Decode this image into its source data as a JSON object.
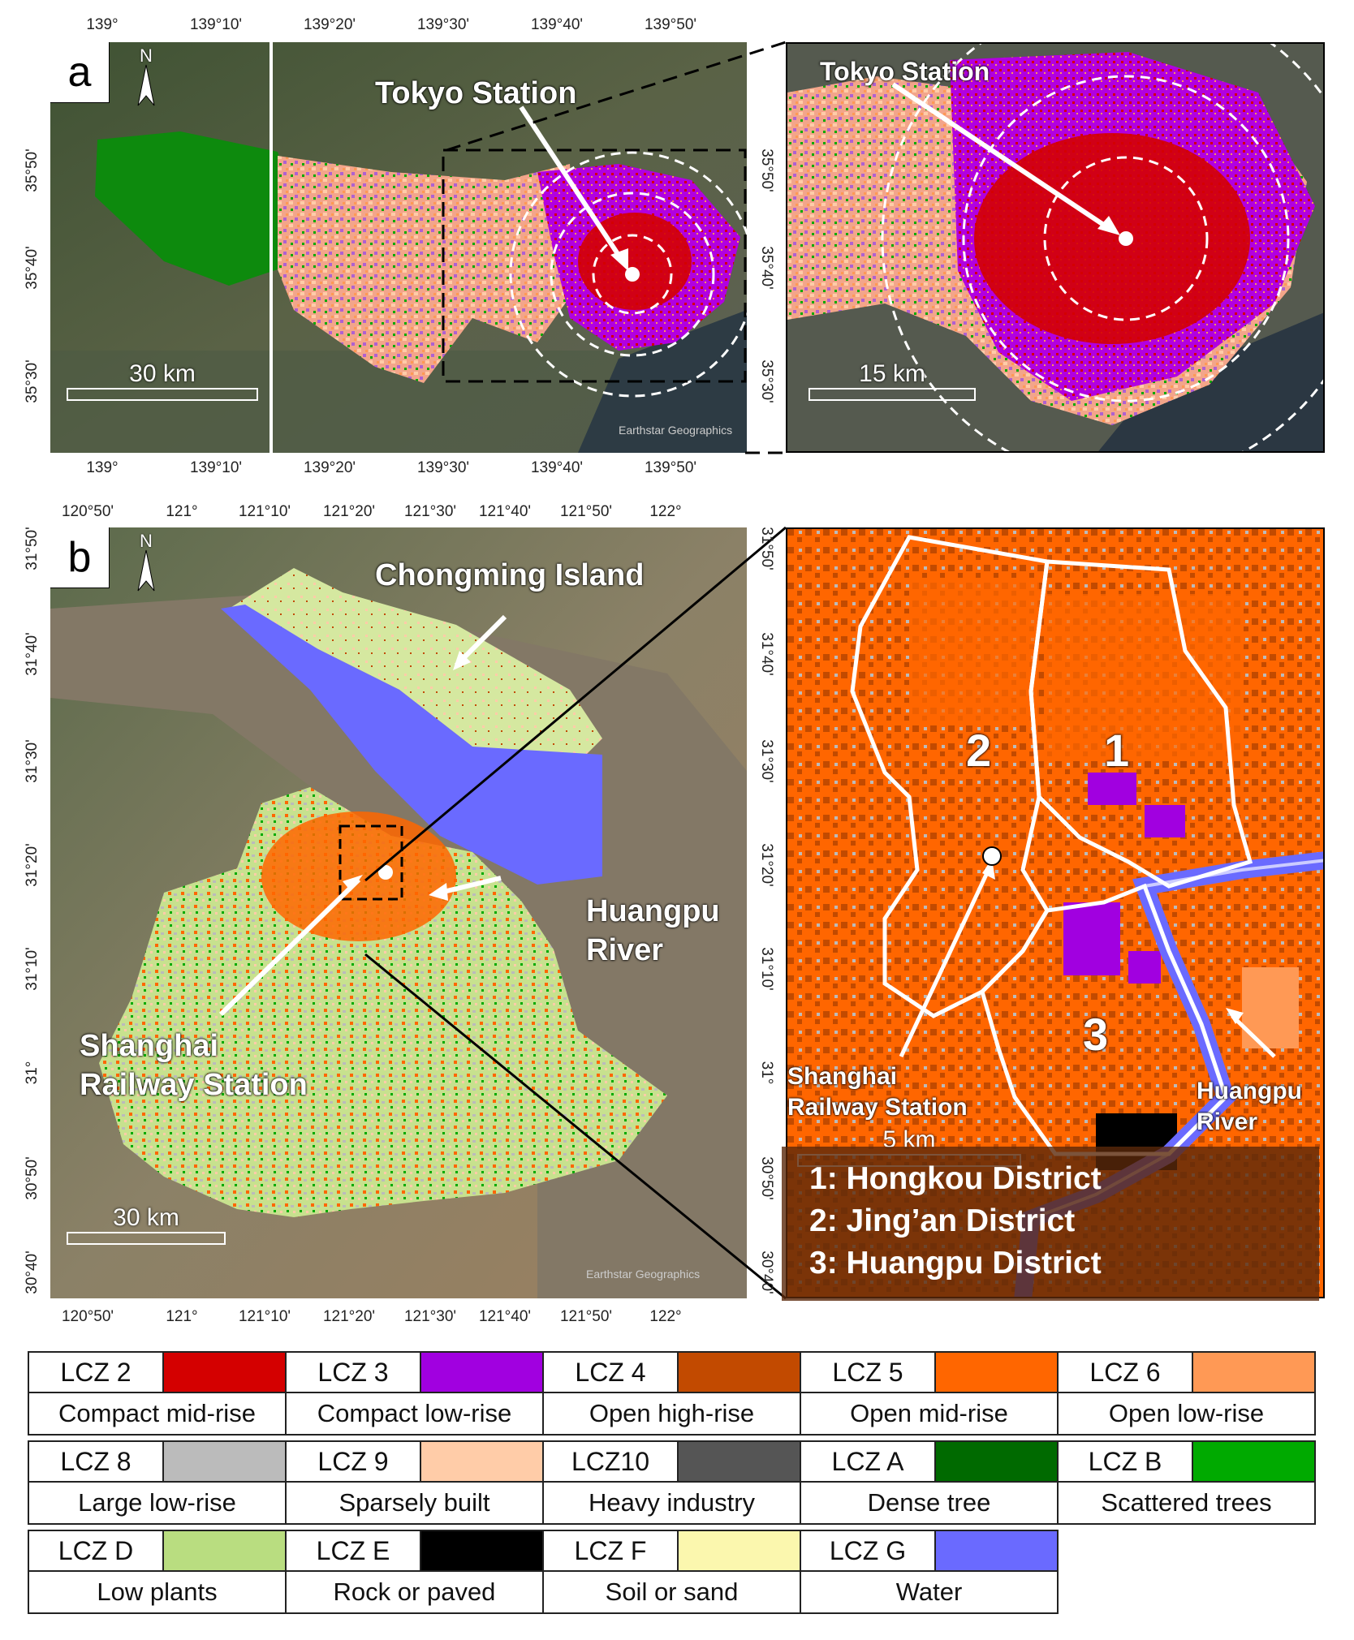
{
  "panel_a": {
    "letter": "a",
    "north": "N",
    "label_station": "Tokyo Station",
    "label_station_zoom": "Tokyo Station",
    "scale_main": "30 km",
    "scale_zoom": "15 km",
    "credit": "Earthstar Geographics",
    "ticks_top": [
      "139°",
      "139°10'",
      "139°20'",
      "139°30'",
      "139°40'",
      "139°50'"
    ],
    "ticks_bottom": [
      "139°",
      "139°10'",
      "139°20'",
      "139°30'",
      "139°40'",
      "139°50'"
    ],
    "ticks_left": [
      "35°50'",
      "35°40'",
      "35°30'"
    ],
    "ticks_right": [
      "35°50'",
      "35°40'",
      "35°30'"
    ]
  },
  "panel_b": {
    "letter": "b",
    "north": "N",
    "label_chongming": "Chongming Island",
    "label_huangpu_1": "Huangpu",
    "label_huangpu_2": "River",
    "label_station_1": "Shanghai",
    "label_station_2": "Railway  Station",
    "zoom_station_1": "Shanghai",
    "zoom_station_2": "Railway  Station",
    "zoom_huangpu_1": "Huangpu",
    "zoom_huangpu_2": "River",
    "district_nums": [
      "1",
      "2",
      "3"
    ],
    "districts": [
      "1: Hongkou District",
      "2: Jing’an District",
      "3: Huangpu District"
    ],
    "scale_main": "30 km",
    "scale_zoom": "5 km",
    "credit": "Earthstar Geographics",
    "ticks_top": [
      "120°50'",
      "121°",
      "121°10'",
      "121°20'",
      "121°30'",
      "121°40'",
      "121°50'",
      "122°"
    ],
    "ticks_bottom": [
      "120°50'",
      "121°",
      "121°10'",
      "121°20'",
      "121°30'",
      "121°40'",
      "121°50'",
      "122°"
    ],
    "ticks_left": [
      "31°50'",
      "31°40'",
      "31°30'",
      "31°20'",
      "31°10'",
      "31°",
      "30°50'",
      "30°40'"
    ],
    "ticks_right": [
      "31°50'",
      "31°40'",
      "31°30'",
      "31°20'",
      "31°10'",
      "31°",
      "30°50'",
      "30°40'"
    ]
  },
  "legend": [
    {
      "code": "LCZ 2",
      "name": "Compact mid-rise",
      "color": "#d40000"
    },
    {
      "code": "LCZ 3",
      "name": "Compact low-rise",
      "color": "#a100e0"
    },
    {
      "code": "LCZ 4",
      "name": "Open high-rise",
      "color": "#c24a00"
    },
    {
      "code": "LCZ 5",
      "name": "Open mid-rise",
      "color": "#ff6600"
    },
    {
      "code": "LCZ 6",
      "name": "Open low-rise",
      "color": "#ff9955"
    },
    {
      "code": "LCZ 8",
      "name": "Large low-rise",
      "color": "#bbbbbb"
    },
    {
      "code": "LCZ 9",
      "name": "Sparsely built",
      "color": "#ffcca8"
    },
    {
      "code": "LCZ10",
      "name": "Heavy industry",
      "color": "#555555"
    },
    {
      "code": "LCZ A",
      "name": "Dense tree",
      "color": "#006a00"
    },
    {
      "code": "LCZ B",
      "name": "Scattered trees",
      "color": "#00aa00"
    },
    {
      "code": "LCZ D",
      "name": "Low plants",
      "color": "#b9dd80"
    },
    {
      "code": "LCZ E",
      "name": "Rock or paved",
      "color": "#000000"
    },
    {
      "code": "LCZ F",
      "name": "Soil or sand",
      "color": "#fbf7ae"
    },
    {
      "code": "LCZ G",
      "name": "Water",
      "color": "#6a6aff"
    }
  ]
}
